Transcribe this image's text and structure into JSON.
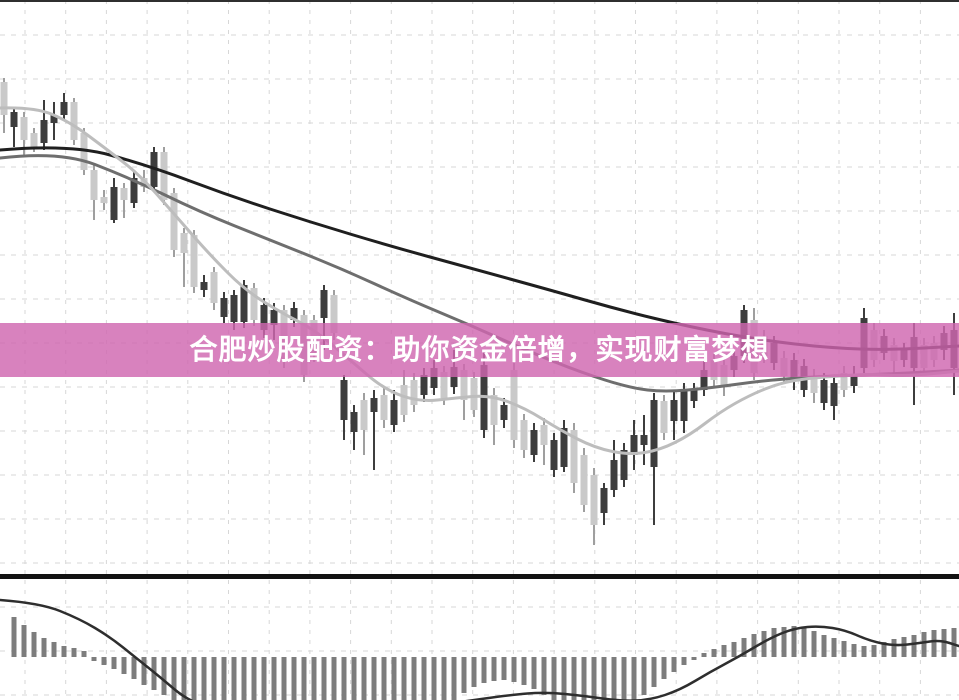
{
  "banner": {
    "text": "合肥炒股配资：助你资金倍增，实现财富梦想",
    "background_color": "rgba(207,102,176,0.82)",
    "text_color": "#ffffff"
  },
  "colors": {
    "background": "#ffffff",
    "grid": "#d7d7d7",
    "top_border": "#2f2f2f",
    "panel_separator": "#121212",
    "candle_up": "#c9c9c9",
    "candle_up_wick": "#9f9f9f",
    "candle_down": "#3d3d3d",
    "ma_slow": "#1f1f1f",
    "ma_mid": "#6e6e6e",
    "ma_fast": "#bdbdbd",
    "histogram_bar": "#7d7d7d",
    "signal_line": "#2e2e2e"
  },
  "chart_data": [
    {
      "type": "candlestick",
      "title": "",
      "xlabel": "",
      "ylabel": "",
      "axes_labeled": false,
      "grid": true,
      "note": "unlabeled daily K-line chart; values in relative price units (1 unit = 1 px, 0 = bottom of main panel)",
      "open": [
        465,
        468,
        440,
        433,
        460,
        465,
        478,
        440,
        410,
        380,
        377,
        393,
        380,
        402,
        393,
        428,
        380,
        330,
        327,
        293,
        298,
        277,
        282,
        285,
        295,
        260,
        275,
        270,
        220,
        272,
        205,
        225,
        290,
        247,
        200,
        168,
        150,
        182,
        160,
        180,
        165,
        175,
        205,
        212,
        182,
        213,
        180,
        170,
        215,
        155,
        175,
        140,
        130,
        150,
        135,
        140,
        152,
        97,
        75,
        55,
        92,
        120,
        130,
        145,
        145,
        180,
        147,
        180,
        190,
        190,
        210,
        200,
        194,
        224,
        270,
        207,
        224,
        237,
        204,
        220,
        214,
        187,
        200,
        197,
        190,
        204,
        262,
        220,
        244,
        219,
        230,
        243,
        212,
        220,
        247,
        250
      ],
      "close": [
        498,
        453,
        463,
        447,
        437,
        457,
        465,
        478,
        447,
        410,
        383,
        360,
        392,
        377,
        402,
        393,
        428,
        387,
        347,
        345,
        290,
        308,
        263,
        258,
        258,
        292,
        250,
        255,
        270,
        260,
        265,
        260,
        262,
        285,
        160,
        148,
        180,
        168,
        185,
        155,
        195,
        200,
        185,
        192,
        208,
        193,
        210,
        202,
        150,
        185,
        160,
        210,
        160,
        125,
        155,
        110,
        113,
        150,
        125,
        105,
        67,
        90,
        100,
        125,
        135,
        113,
        179,
        159,
        159,
        179,
        190,
        220,
        215,
        210,
        224,
        260,
        244,
        217,
        222,
        200,
        190,
        204,
        177,
        174,
        207,
        194,
        212,
        250,
        227,
        235,
        220,
        212,
        235,
        237,
        230,
        212
      ],
      "high": [
        502,
        473,
        468,
        452,
        480,
        478,
        487,
        482,
        452,
        415,
        390,
        402,
        397,
        408,
        410,
        433,
        433,
        392,
        352,
        350,
        305,
        313,
        288,
        290,
        300,
        297,
        282,
        277,
        275,
        278,
        270,
        265,
        295,
        290,
        205,
        175,
        187,
        190,
        192,
        190,
        210,
        207,
        212,
        220,
        214,
        230,
        216,
        208,
        230,
        192,
        182,
        217,
        166,
        157,
        162,
        147,
        160,
        157,
        132,
        112,
        97,
        140,
        137,
        160,
        165,
        187,
        185,
        190,
        197,
        197,
        220,
        227,
        222,
        231,
        275,
        272,
        250,
        244,
        229,
        227,
        221,
        211,
        207,
        204,
        214,
        214,
        272,
        257,
        251,
        242,
        237,
        257,
        242,
        244,
        254,
        267
      ],
      "low": [
        447,
        433,
        423,
        428,
        430,
        440,
        460,
        435,
        405,
        360,
        370,
        357,
        362,
        372,
        388,
        390,
        375,
        323,
        293,
        287,
        283,
        270,
        257,
        250,
        252,
        254,
        242,
        240,
        212,
        253,
        198,
        218,
        230,
        240,
        140,
        130,
        125,
        110,
        152,
        148,
        158,
        168,
        178,
        185,
        175,
        186,
        160,
        163,
        142,
        135,
        152,
        132,
        122,
        118,
        115,
        103,
        108,
        87,
        68,
        35,
        55,
        83,
        93,
        110,
        115,
        55,
        140,
        140,
        147,
        172,
        184,
        193,
        184,
        203,
        217,
        200,
        217,
        210,
        197,
        190,
        183,
        177,
        170,
        160,
        183,
        187,
        207,
        213,
        220,
        207,
        213,
        175,
        205,
        213,
        220,
        185
      ],
      "up_color": "#c9c9c9",
      "down_color": "#3d3d3d",
      "overlays": [
        {
          "name": "ma-slow",
          "color": "#1f1f1f",
          "width": 3,
          "points": [
            [
              0,
              430
            ],
            [
              70,
              436
            ],
            [
              150,
              414
            ],
            [
              230,
              384
            ],
            [
              310,
              358
            ],
            [
              390,
              334
            ],
            [
              470,
              312
            ],
            [
              550,
              290
            ],
            [
              620,
              270
            ],
            [
              690,
              253
            ],
            [
              760,
              240
            ],
            [
              830,
              232
            ],
            [
              890,
              230
            ],
            [
              959,
              234
            ]
          ]
        },
        {
          "name": "ma-mid",
          "color": "#6e6e6e",
          "width": 3,
          "points": [
            [
              0,
              422
            ],
            [
              60,
              429
            ],
            [
              130,
              402
            ],
            [
              200,
              368
            ],
            [
              270,
              340
            ],
            [
              340,
              312
            ],
            [
              410,
              280
            ],
            [
              470,
              255
            ],
            [
              530,
              228
            ],
            [
              580,
              208
            ],
            [
              630,
              192
            ],
            [
              665,
              188
            ],
            [
              710,
              192
            ],
            [
              760,
              199
            ],
            [
              810,
              203
            ],
            [
              860,
              205
            ],
            [
              910,
              207
            ],
            [
              959,
              210
            ]
          ]
        },
        {
          "name": "ma-fast",
          "color": "#bdbdbd",
          "width": 3,
          "points": [
            [
              0,
              472
            ],
            [
              35,
              473
            ],
            [
              70,
              458
            ],
            [
              105,
              432
            ],
            [
              140,
              405
            ],
            [
              175,
              365
            ],
            [
              210,
              325
            ],
            [
              245,
              290
            ],
            [
              280,
              268
            ],
            [
              315,
              250
            ],
            [
              350,
              220
            ],
            [
              385,
              190
            ],
            [
              420,
              178
            ],
            [
              455,
              182
            ],
            [
              490,
              185
            ],
            [
              525,
              172
            ],
            [
              560,
              150
            ],
            [
              595,
              132
            ],
            [
              630,
              125
            ],
            [
              660,
              130
            ],
            [
              690,
              145
            ],
            [
              720,
              168
            ],
            [
              750,
              185
            ],
            [
              780,
              197
            ],
            [
              810,
              202
            ],
            [
              840,
              204
            ],
            [
              870,
              206
            ],
            [
              900,
              204
            ],
            [
              930,
              206
            ],
            [
              959,
              209
            ]
          ]
        }
      ]
    },
    {
      "type": "bar",
      "name": "macd-histogram",
      "note": "lower indicator panel; values relative to zero baseline (1 unit = 1 px), bars below baseline are clipped by image bottom",
      "baseline": 0,
      "values": [
        0,
        40,
        32,
        25,
        19,
        15,
        11,
        9,
        6,
        -4,
        -8,
        -12,
        -17,
        -22,
        -28,
        -33,
        -38,
        -43,
        -47,
        -52,
        -57,
        -61,
        -63,
        -63,
        -62,
        -60,
        -58,
        -55,
        -52,
        -50,
        -48,
        -46,
        -45,
        -44,
        -45,
        -46,
        -47,
        -48,
        -48,
        -46,
        -45,
        -44,
        -44,
        -45,
        -46,
        -44,
        -36,
        -30,
        -26,
        -24,
        -23,
        -25,
        -28,
        -32,
        -38,
        -43,
        -48,
        -52,
        -55,
        -56,
        -55,
        -52,
        -48,
        -45,
        -38,
        -30,
        -22,
        -15,
        -8,
        -3,
        4,
        8,
        12,
        15,
        19,
        23,
        26,
        29,
        30,
        31,
        29,
        26,
        22,
        19,
        16,
        13,
        11,
        12,
        15,
        18,
        20,
        22,
        25,
        27,
        28,
        29
      ],
      "bar_color": "#7d7d7d",
      "signal_line": {
        "color": "#2e2e2e",
        "width": 2.5,
        "points": [
          [
            0,
            57
          ],
          [
            40,
            54
          ],
          [
            80,
            38
          ],
          [
            110,
            20
          ],
          [
            135,
            0
          ],
          [
            160,
            -20
          ],
          [
            187,
            -43
          ],
          [
            215,
            -52
          ],
          [
            260,
            -57
          ],
          [
            310,
            -60
          ],
          [
            360,
            -58
          ],
          [
            410,
            -52
          ],
          [
            460,
            -45
          ],
          [
            510,
            -38
          ],
          [
            545,
            -35
          ],
          [
            585,
            -39
          ],
          [
            620,
            -44
          ],
          [
            650,
            -43
          ],
          [
            680,
            -33
          ],
          [
            710,
            -15
          ],
          [
            740,
            1
          ],
          [
            770,
            19
          ],
          [
            795,
            29
          ],
          [
            820,
            31
          ],
          [
            845,
            27
          ],
          [
            870,
            16
          ],
          [
            895,
            11
          ],
          [
            920,
            14
          ],
          [
            940,
            17
          ],
          [
            959,
            11
          ]
        ]
      }
    }
  ]
}
